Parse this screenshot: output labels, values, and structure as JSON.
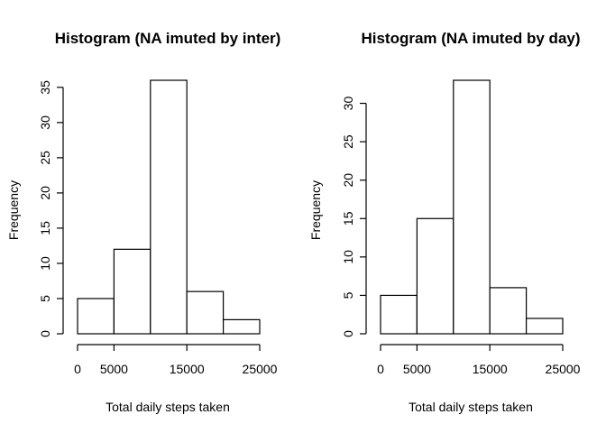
{
  "chart_data": [
    {
      "type": "bar",
      "title": "Histogram (NA imuted by inter)",
      "xlabel": "Total daily steps taken",
      "ylabel": "Frequency",
      "bins": [
        [
          0,
          5000
        ],
        [
          5000,
          10000
        ],
        [
          10000,
          15000
        ],
        [
          15000,
          20000
        ],
        [
          20000,
          25000
        ]
      ],
      "values": [
        5,
        12,
        36,
        6,
        2
      ],
      "xlim": [
        0,
        25000
      ],
      "ylim": [
        0,
        36
      ],
      "x_ticks": [
        0,
        5000,
        15000,
        25000
      ],
      "x_tick_labels": [
        "0",
        "5000",
        "15000",
        "25000"
      ],
      "y_ticks": [
        0,
        5,
        10,
        15,
        20,
        25,
        30,
        35
      ],
      "y_tick_labels": [
        "0",
        "5",
        "10",
        "15",
        "20",
        "25",
        "30",
        "35"
      ],
      "grid": false,
      "legend": "none"
    },
    {
      "type": "bar",
      "title": "Histogram (NA imuted by day)",
      "xlabel": "Total daily steps taken",
      "ylabel": "Frequency",
      "bins": [
        [
          0,
          5000
        ],
        [
          5000,
          10000
        ],
        [
          10000,
          15000
        ],
        [
          15000,
          20000
        ],
        [
          20000,
          25000
        ]
      ],
      "values": [
        5,
        15,
        33,
        6,
        2
      ],
      "xlim": [
        0,
        25000
      ],
      "ylim": [
        0,
        33
      ],
      "x_ticks": [
        0,
        5000,
        15000,
        25000
      ],
      "x_tick_labels": [
        "0",
        "5000",
        "15000",
        "25000"
      ],
      "y_ticks": [
        0,
        5,
        10,
        15,
        20,
        25,
        30
      ],
      "y_tick_labels": [
        "0",
        "5",
        "10",
        "15",
        "20",
        "25",
        "30"
      ],
      "grid": false,
      "legend": "none"
    }
  ]
}
